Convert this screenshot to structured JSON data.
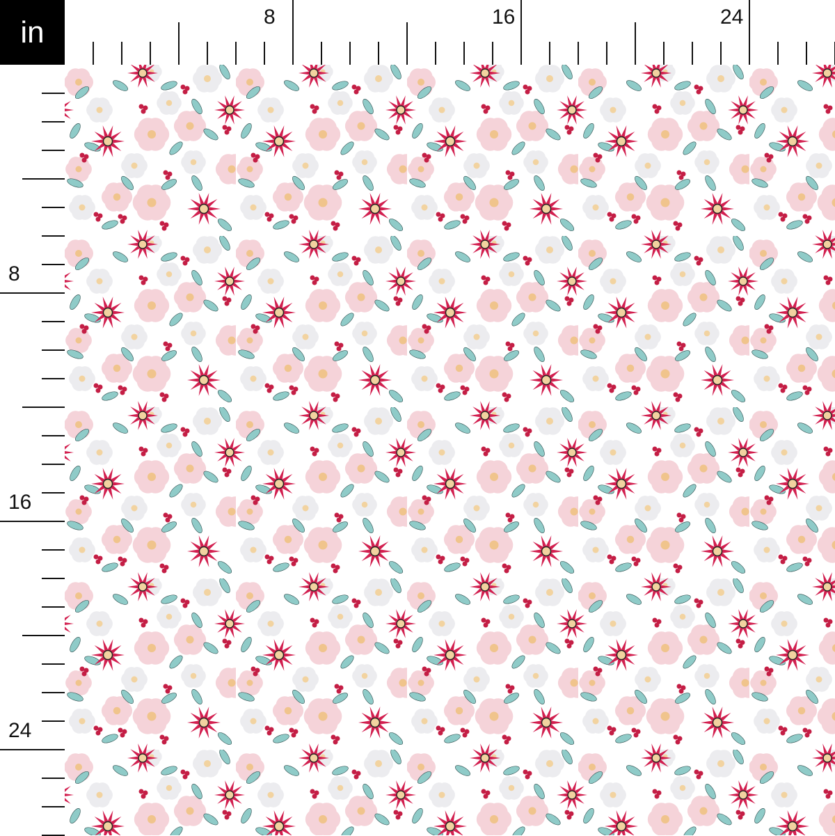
{
  "unit_label": "in",
  "top_ruler": {
    "labels": [
      "8",
      "16",
      "24"
    ]
  },
  "left_ruler": {
    "labels": [
      "8",
      "16",
      "24"
    ]
  },
  "fabric": {
    "pattern": "christmas floral with poinsettias, pink and white roses, holly leaves, berries and pine sprigs",
    "colors": {
      "background": "#ffffff",
      "poinsettia": "#d21f4f",
      "pink_flower": "#f5d3d9",
      "white_flower": "#ececef",
      "leaf": "#8fcbc8",
      "berry": "#c41e45",
      "center": "#f2d3a0"
    }
  }
}
